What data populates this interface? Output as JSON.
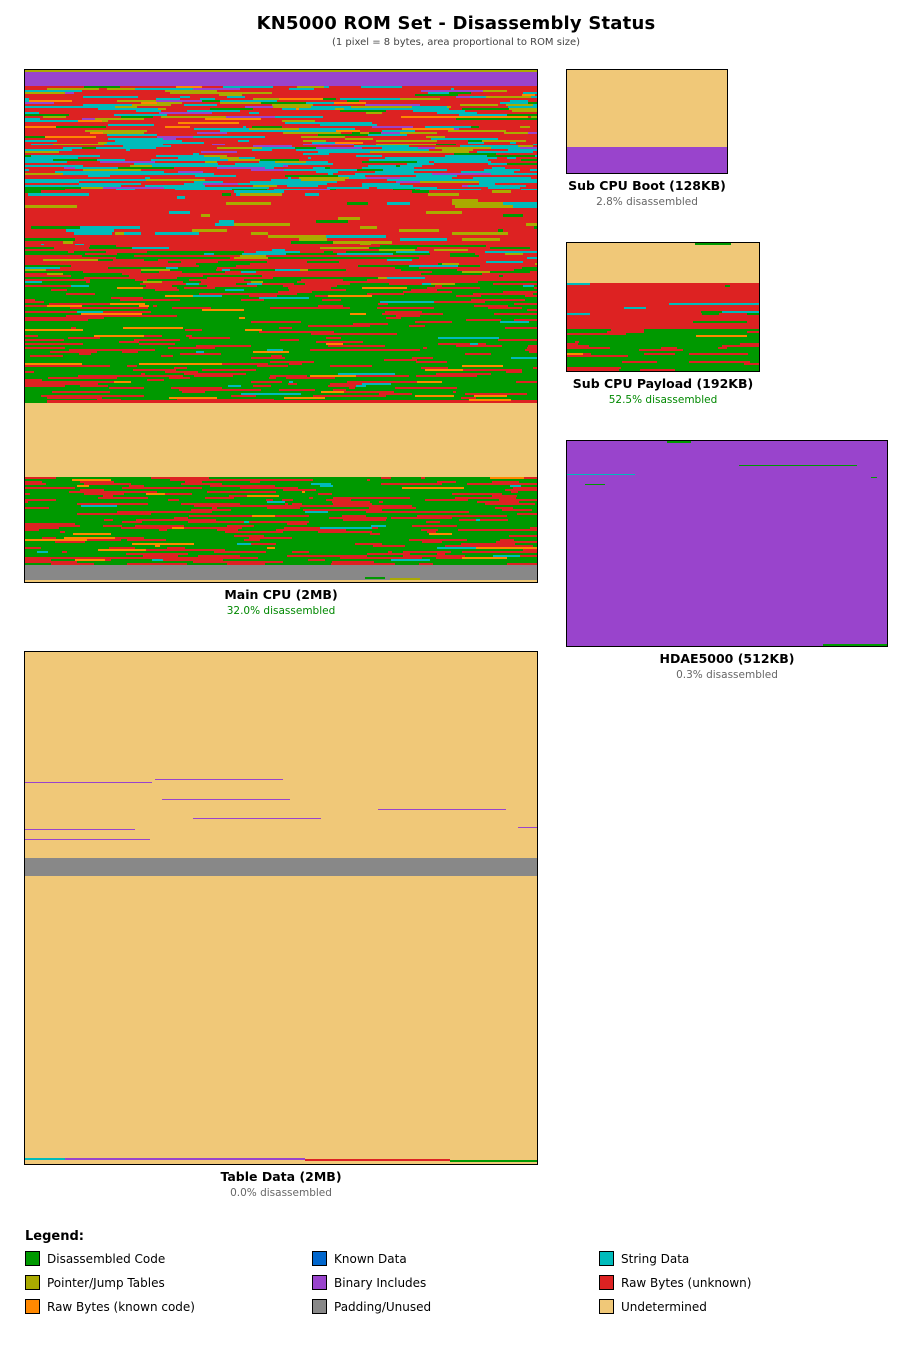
{
  "title": "KN5000 ROM Set - Disassembly Status",
  "subtitle": "(1 pixel = 8 bytes, area proportional to ROM size)",
  "colors": {
    "code": "#009900",
    "known": "#0066cc",
    "string": "#00bbbb",
    "pointer": "#aaaa00",
    "binary": "#9944cc",
    "raw": "#dd2222",
    "rawcode": "#ff8800",
    "padding": "#888888",
    "undetermined": "#f0c878"
  },
  "roms": [
    {
      "id": "main",
      "name": "Main CPU (2MB)",
      "status": "32.0% disassembled"
    },
    {
      "id": "subboot",
      "name": "Sub CPU Boot (128KB)",
      "status": "2.8% disassembled"
    },
    {
      "id": "subpayload",
      "name": "Sub CPU Payload (192KB)",
      "status": "52.5% disassembled"
    },
    {
      "id": "hdae",
      "name": "HDAE5000 (512KB)",
      "status": "0.3% disassembled"
    },
    {
      "id": "table",
      "name": "Table Data (2MB)",
      "status": "0.0% disassembled"
    }
  ],
  "legend": {
    "title": "Legend:",
    "items": [
      {
        "label": "Disassembled Code",
        "color": "#009900"
      },
      {
        "label": "Known Data",
        "color": "#0066cc"
      },
      {
        "label": "String Data",
        "color": "#00bbbb"
      },
      {
        "label": "Pointer/Jump Tables",
        "color": "#aaaa00"
      },
      {
        "label": "Binary Includes",
        "color": "#9944cc"
      },
      {
        "label": "Raw Bytes (unknown)",
        "color": "#dd2222"
      },
      {
        "label": "Raw Bytes (known code)",
        "color": "#ff8800"
      },
      {
        "label": "Padding/Unused",
        "color": "#888888"
      },
      {
        "label": "Undetermined",
        "color": "#f0c878"
      }
    ]
  }
}
